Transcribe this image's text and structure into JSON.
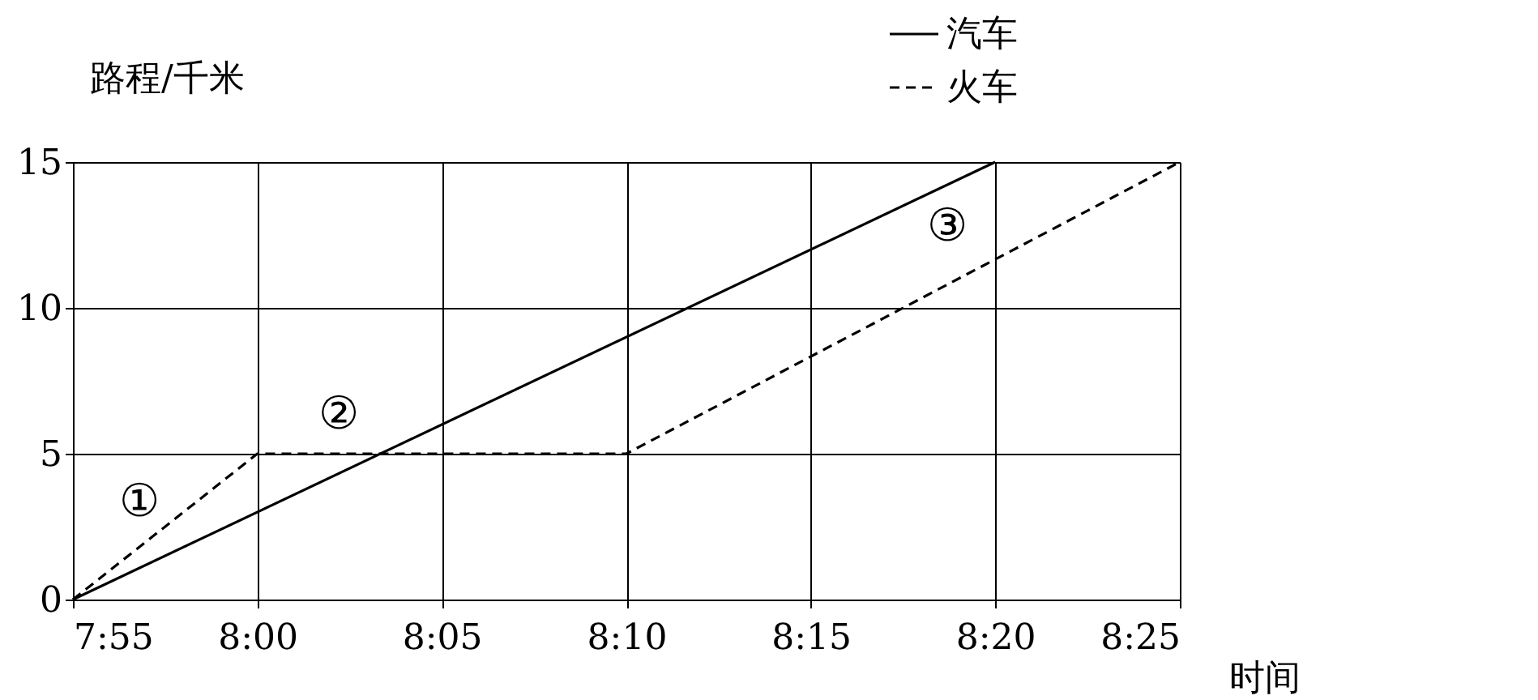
{
  "chart_data": {
    "type": "line",
    "xlabel": "时间",
    "ylabel": "路程/千米",
    "series": [
      {
        "name": "汽车",
        "color": "#000000",
        "line_style": "solid",
        "x": [
          7.9167,
          8.3333
        ],
        "values": [
          0,
          15
        ]
      },
      {
        "name": "火车",
        "color": "#000000",
        "line_style": "dashed",
        "x": [
          7.9167,
          8.0,
          8.1667,
          8.4167
        ],
        "values": [
          0,
          5,
          5,
          15
        ]
      }
    ],
    "xlim": [
      7.9167,
      8.4167
    ],
    "xticks": [
      {
        "value": 7.9167,
        "label": "7:55"
      },
      {
        "value": 8.0,
        "label": "8:00"
      },
      {
        "value": 8.0833,
        "label": "8:05"
      },
      {
        "value": 8.1667,
        "label": "8:10"
      },
      {
        "value": 8.25,
        "label": "8:15"
      },
      {
        "value": 8.3333,
        "label": "8:20"
      },
      {
        "value": 8.4167,
        "label": "8:25"
      }
    ],
    "ylim": [
      0,
      15
    ],
    "yticks": [
      0,
      5,
      10,
      15
    ],
    "grid": true,
    "legend": "top right",
    "marker": "none",
    "annotations": [
      "①",
      "②",
      "③"
    ]
  }
}
